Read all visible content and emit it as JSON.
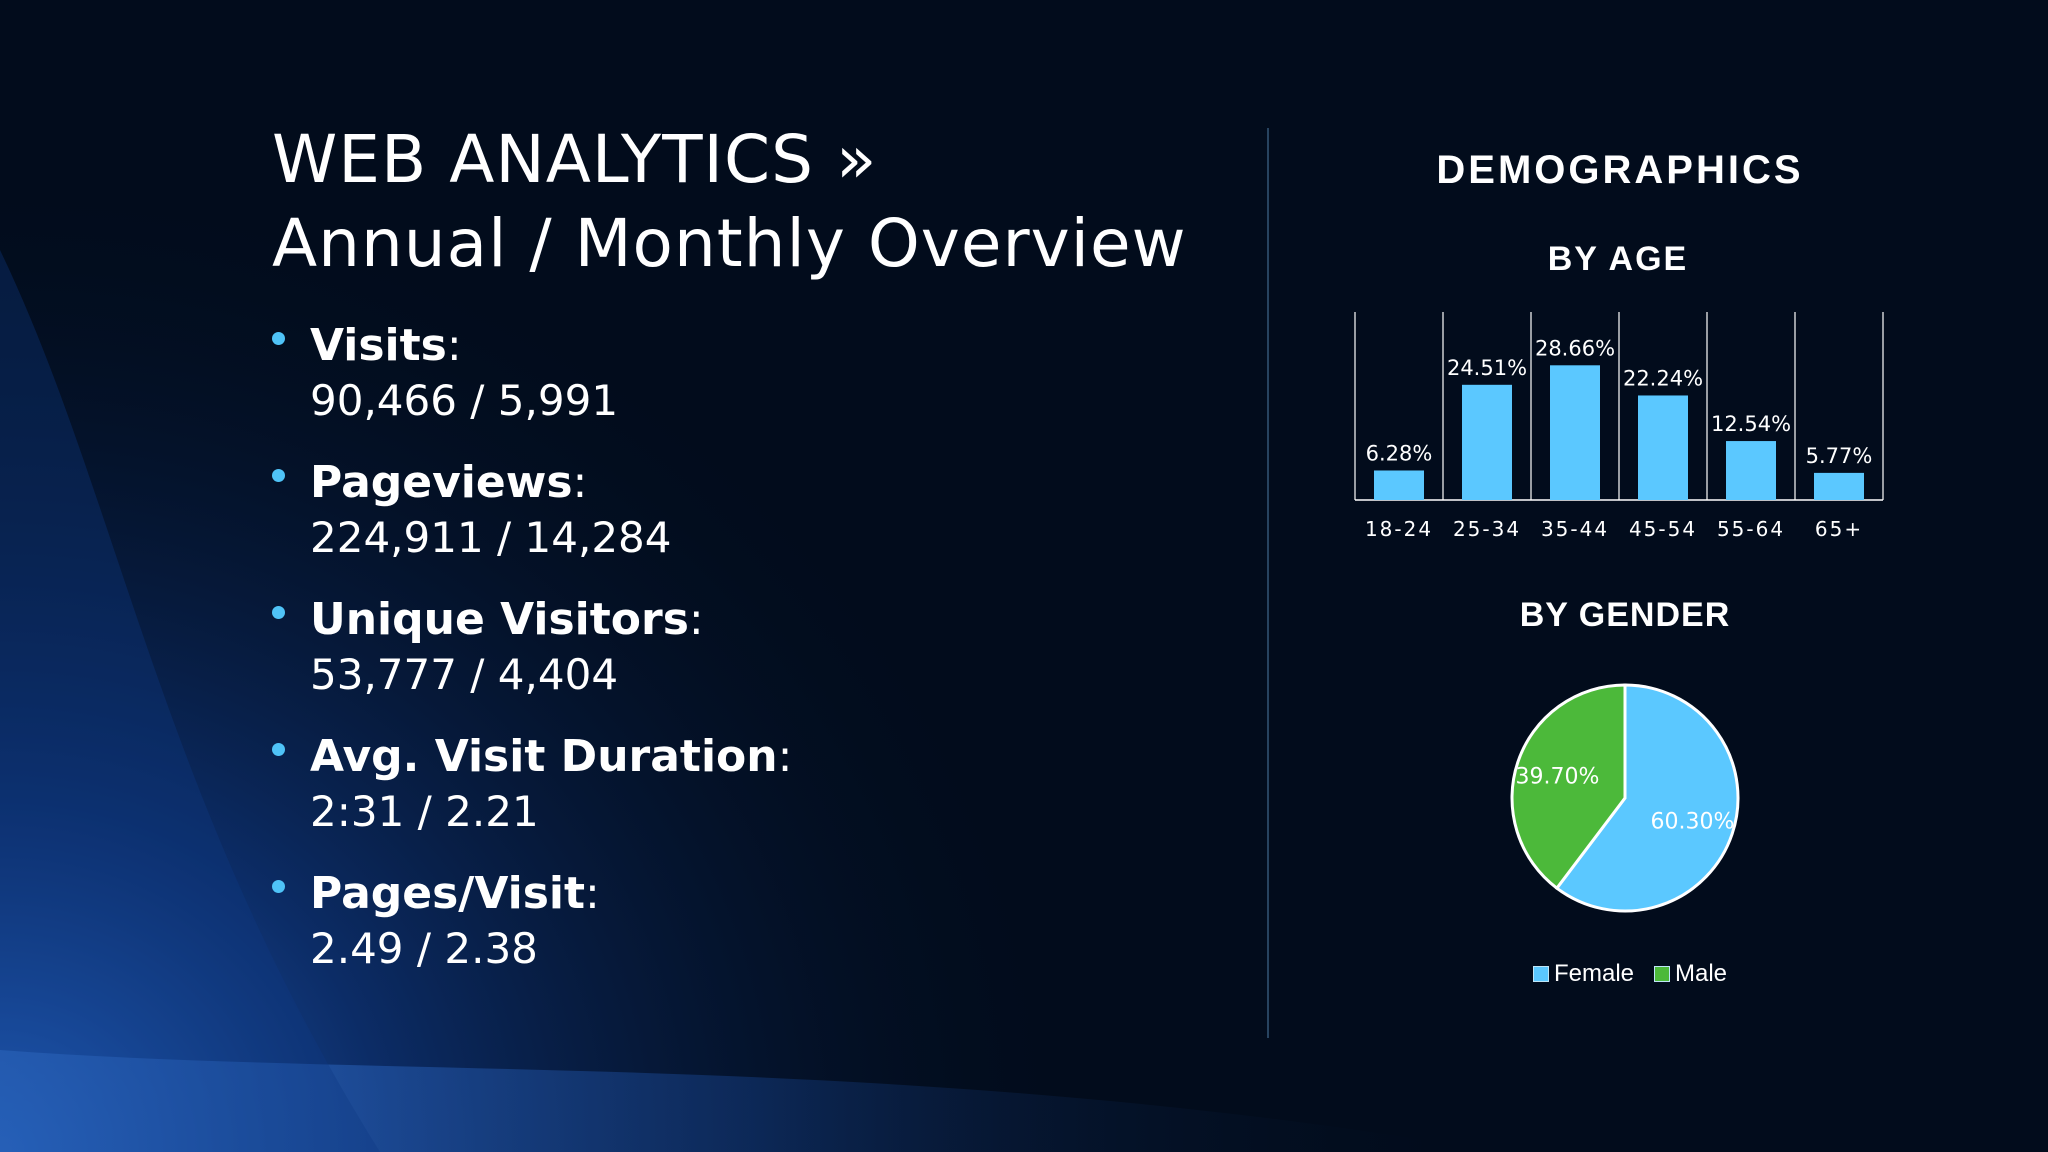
{
  "slide": {
    "title_line1": "WEB ANALYTICS »",
    "title_line2": "Annual / Monthly Overview"
  },
  "metrics": [
    {
      "label": "Visits",
      "value": "90,466 / 5,991"
    },
    {
      "label": "Pageviews",
      "value": "224,911 / 14,284"
    },
    {
      "label": "Unique Visitors",
      "value": "53,777 / 4,404"
    },
    {
      "label": "Avg. Visit Duration",
      "value": "2:31 / 2.21"
    },
    {
      "label": "Pages/Visit",
      "value": "2.49 / 2.38"
    }
  ],
  "demographics": {
    "title": "DEMOGRAPHICS",
    "by_age_title": "BY AGE",
    "by_gender_title": "BY GENDER"
  },
  "colors": {
    "accent": "#4fc3f7",
    "bar": "#5bc8ff",
    "female": "#5bc8ff",
    "male": "#4cb93a",
    "background": "#020c1c"
  },
  "chart_data": [
    {
      "type": "bar",
      "title": "BY AGE",
      "categories": [
        "18-24",
        "25-34",
        "35-44",
        "45-54",
        "55-64",
        "65+"
      ],
      "values": [
        6.28,
        24.51,
        28.66,
        22.24,
        12.54,
        5.77
      ],
      "data_labels": [
        "6.28%",
        "24.51%",
        "28.66%",
        "22.24%",
        "12.54%",
        "5.77%"
      ],
      "ylim": [
        0,
        40
      ],
      "grid": false
    },
    {
      "type": "pie",
      "title": "BY GENDER",
      "labels": [
        "Female",
        "Male"
      ],
      "values": [
        60.3,
        39.7
      ],
      "data_labels": [
        "60.30%",
        "39.70%"
      ],
      "legend_position": "bottom"
    }
  ]
}
